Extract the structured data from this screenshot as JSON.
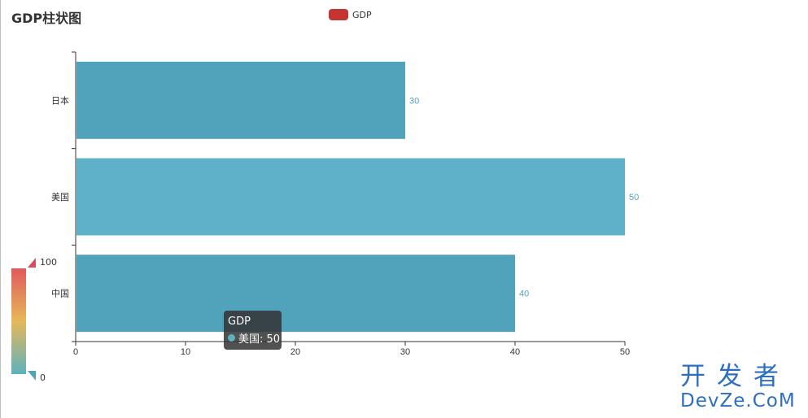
{
  "chart_data": {
    "type": "bar",
    "orientation": "horizontal",
    "title": "GDP柱状图",
    "legend": [
      "GDP"
    ],
    "legend_placement": "top-center",
    "categories": [
      "中国",
      "美国",
      "日本"
    ],
    "series": [
      {
        "name": "GDP",
        "values": [
          40,
          50,
          30
        ]
      }
    ],
    "xlim": [
      0,
      50
    ],
    "x_ticks": [
      0,
      10,
      20,
      30,
      40,
      50
    ],
    "grid": false,
    "data_labels": true
  },
  "visual_map": {
    "max_label": "100",
    "min_label": "0",
    "colors": [
      "#d94e5d",
      "#eac736",
      "#50a3ba"
    ]
  },
  "tooltip": {
    "series": "GDP",
    "item": "美国: 50"
  },
  "colors": {
    "bar_dark": "#50a3ba",
    "bar_light": "#5eb1c8",
    "legend": "#c23531",
    "label": "#50a3ba"
  },
  "watermark": {
    "line1": "开发者",
    "line2": "DevZe.CoM"
  }
}
